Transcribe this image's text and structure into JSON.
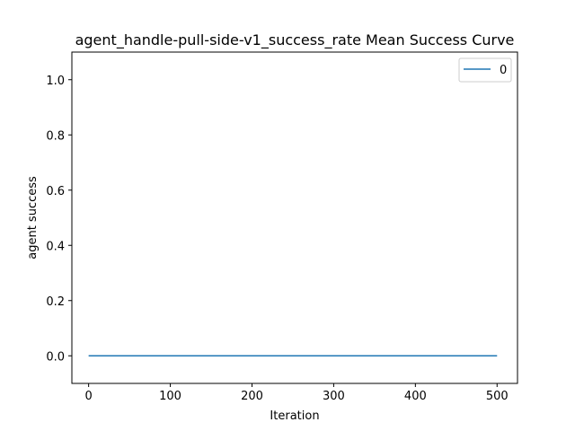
{
  "chart_data": {
    "type": "line",
    "title": "agent_handle-pull-side-v1_success_rate Mean Success Curve",
    "xlabel": "Iteration",
    "ylabel": "agent success",
    "xlim": [
      -20.5,
      525
    ],
    "ylim": [
      -0.1,
      1.1
    ],
    "x_ticks": [
      0,
      100,
      200,
      300,
      400,
      500
    ],
    "y_ticks": [
      0.0,
      0.2,
      0.4,
      0.6,
      0.8,
      1.0
    ],
    "x_tick_labels": [
      "0",
      "100",
      "200",
      "300",
      "400",
      "500"
    ],
    "y_tick_labels": [
      "0.0",
      "0.2",
      "0.4",
      "0.6",
      "0.8",
      "1.0"
    ],
    "grid": false,
    "legend_position": "top-right",
    "series": [
      {
        "name": "0",
        "color": "#1f77b4",
        "x": [
          0,
          500
        ],
        "y": [
          0.0,
          0.0
        ]
      }
    ]
  }
}
